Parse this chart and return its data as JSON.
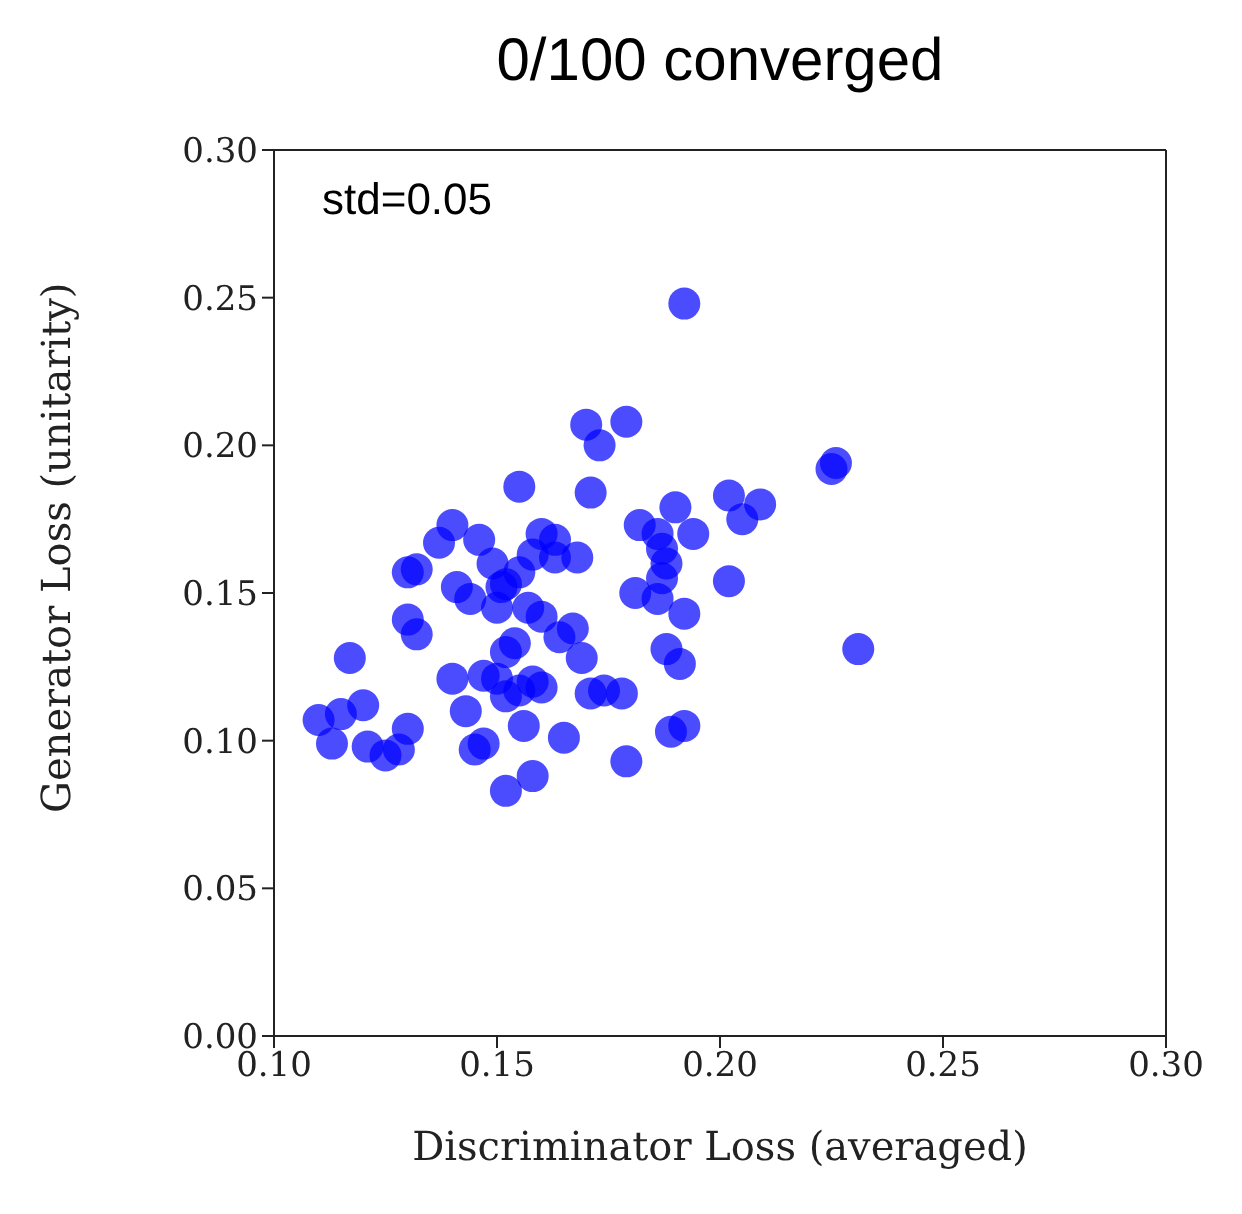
{
  "chart_data": {
    "type": "scatter",
    "title": "0/100 converged",
    "xlabel": "Discriminator Loss (averaged)",
    "ylabel": "Generator Loss (unitarity)",
    "annotations": [
      "std=0.05"
    ],
    "xlim": [
      0.1,
      0.3
    ],
    "ylim": [
      0,
      0.3
    ],
    "xticks": [
      {
        "value": 0.1,
        "label": "0.10"
      },
      {
        "value": 0.15,
        "label": "0.15"
      },
      {
        "value": 0.2,
        "label": "0.20"
      },
      {
        "value": 0.25,
        "label": "0.25"
      },
      {
        "value": 0.3,
        "label": "0.30"
      }
    ],
    "yticks": [
      {
        "value": 0,
        "label": "0.00"
      },
      {
        "value": 0.05,
        "label": "0.05"
      },
      {
        "value": 0.1,
        "label": "0.10"
      },
      {
        "value": 0.15,
        "label": "0.15"
      },
      {
        "value": 0.2,
        "label": "0.20"
      },
      {
        "value": 0.25,
        "label": "0.25"
      },
      {
        "value": 0.3,
        "label": "0.30"
      }
    ],
    "grid": false,
    "marker": "circle",
    "series": [
      {
        "color": "#0000ff",
        "x": [
          0.192,
          0.17,
          0.179,
          0.173,
          0.225,
          0.226,
          0.155,
          0.171,
          0.19,
          0.202,
          0.209,
          0.205,
          0.182,
          0.194,
          0.14,
          0.137,
          0.146,
          0.16,
          0.163,
          0.163,
          0.158,
          0.168,
          0.186,
          0.187,
          0.188,
          0.187,
          0.181,
          0.186,
          0.192,
          0.202,
          0.13,
          0.132,
          0.149,
          0.152,
          0.155,
          0.151,
          0.141,
          0.144,
          0.15,
          0.157,
          0.16,
          0.13,
          0.132,
          0.154,
          0.152,
          0.164,
          0.167,
          0.169,
          0.188,
          0.191,
          0.231,
          0.117,
          0.14,
          0.147,
          0.15,
          0.155,
          0.158,
          0.16,
          0.152,
          0.171,
          0.174,
          0.178,
          0.156,
          0.147,
          0.145,
          0.165,
          0.179,
          0.189,
          0.192,
          0.152,
          0.158,
          0.11,
          0.113,
          0.115,
          0.12,
          0.121,
          0.125,
          0.128,
          0.13,
          0.143
        ],
        "values": [
          0.248,
          0.207,
          0.208,
          0.2,
          0.192,
          0.194,
          0.186,
          0.184,
          0.179,
          0.183,
          0.18,
          0.175,
          0.173,
          0.17,
          0.173,
          0.167,
          0.168,
          0.17,
          0.168,
          0.162,
          0.163,
          0.162,
          0.17,
          0.165,
          0.16,
          0.155,
          0.15,
          0.148,
          0.143,
          0.154,
          0.157,
          0.158,
          0.16,
          0.153,
          0.157,
          0.152,
          0.152,
          0.148,
          0.145,
          0.145,
          0.142,
          0.141,
          0.136,
          0.133,
          0.13,
          0.135,
          0.138,
          0.128,
          0.131,
          0.126,
          0.131,
          0.128,
          0.121,
          0.122,
          0.121,
          0.117,
          0.12,
          0.118,
          0.115,
          0.116,
          0.117,
          0.116,
          0.105,
          0.099,
          0.097,
          0.101,
          0.093,
          0.103,
          0.105,
          0.083,
          0.088,
          0.107,
          0.099,
          0.109,
          0.112,
          0.098,
          0.095,
          0.097,
          0.104,
          0.11
        ]
      }
    ]
  }
}
